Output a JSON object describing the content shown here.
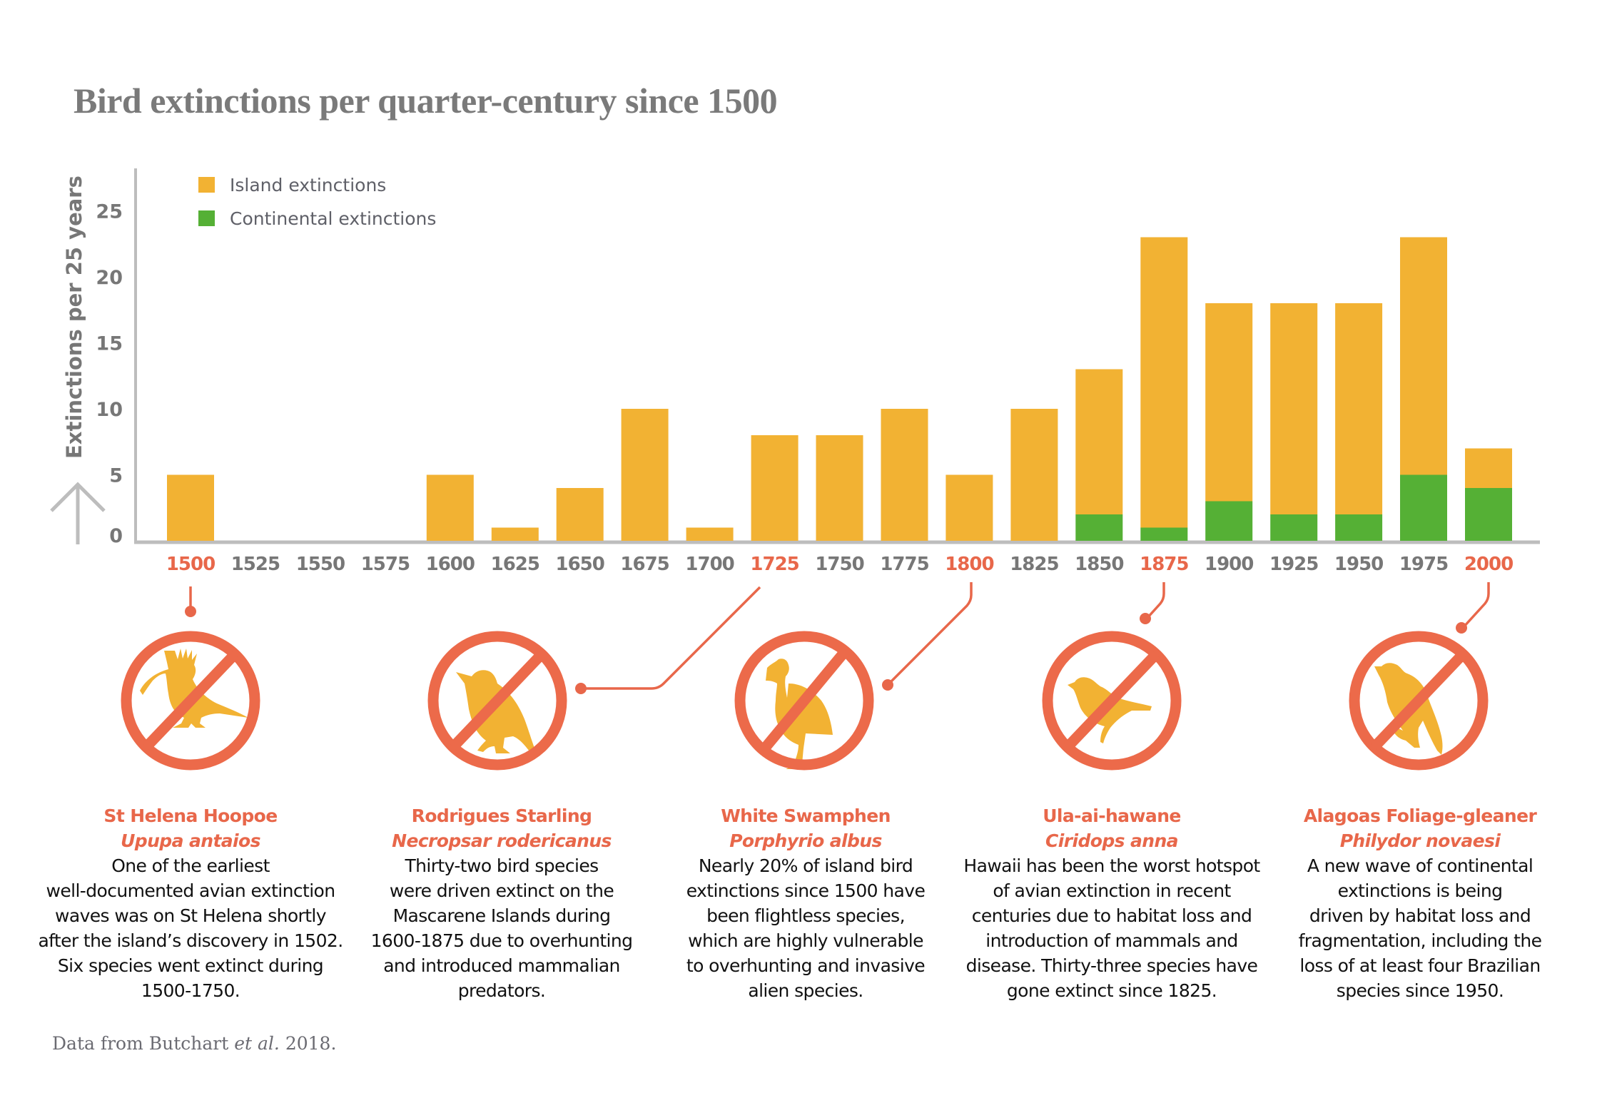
{
  "title": "Bird extinctions per quarter-century since 1500",
  "colors": {
    "island": "#f2b233",
    "continental": "#55b035",
    "accent": "#e8674a",
    "axis": "#bdbdbd",
    "tick_label": "#777777"
  },
  "chart_data": {
    "type": "bar",
    "stacked": true,
    "title": "Bird extinctions per quarter-century since 1500",
    "xlabel": "",
    "ylabel": "Extinctions per 25 years",
    "ylim": [
      0,
      28
    ],
    "yticks": [
      0,
      5,
      10,
      15,
      20,
      25
    ],
    "grid": false,
    "legend_position": "top-left",
    "categories": [
      "1500",
      "1525",
      "1550",
      "1575",
      "1600",
      "1625",
      "1650",
      "1675",
      "1700",
      "1725",
      "1750",
      "1775",
      "1800",
      "1825",
      "1850",
      "1875",
      "1900",
      "1925",
      "1950",
      "1975",
      "2000"
    ],
    "highlighted_categories": [
      "1500",
      "1725",
      "1800",
      "1875",
      "2000"
    ],
    "series": [
      {
        "name": "Continental extinctions",
        "color": "#55b035",
        "values": [
          0,
          0,
          0,
          0,
          0,
          0,
          0,
          0,
          0,
          0,
          0,
          0,
          0,
          0,
          2,
          1,
          3,
          2,
          2,
          5,
          4
        ]
      },
      {
        "name": "Island extinctions",
        "color": "#f2b233",
        "values": [
          5,
          0,
          0,
          0,
          5,
          1,
          4,
          10,
          1,
          8,
          8,
          10,
          5,
          10,
          11,
          22,
          15,
          16,
          16,
          18,
          3
        ]
      }
    ],
    "totals": [
      5,
      0,
      0,
      0,
      5,
      1,
      4,
      10,
      1,
      8,
      8,
      10,
      5,
      10,
      13,
      23,
      18,
      18,
      18,
      23,
      7
    ]
  },
  "legend": [
    {
      "label": "Island extinctions",
      "color": "#f2b233"
    },
    {
      "label": "Continental extinctions",
      "color": "#55b035"
    }
  ],
  "annotations": [
    {
      "year": "1500",
      "icon": "hoopoe-silhouette-icon",
      "common_name": "St Helena Hoopoe",
      "scientific_name": "Upupa antaios",
      "lines": [
        "One of the earliest",
        "well-documented avian extinction",
        "waves was on St Helena shortly",
        "after the island’s discovery in 1502.",
        "Six species went extinct during",
        "1500-1750."
      ]
    },
    {
      "year": "1725",
      "icon": "starling-silhouette-icon",
      "common_name": "Rodrigues Starling",
      "scientific_name": "Necropsar rodericanus",
      "lines": [
        "Thirty-two bird species",
        "were driven extinct on the",
        "Mascarene Islands during",
        "1600-1875 due to overhunting",
        "and introduced mammalian",
        "predators."
      ]
    },
    {
      "year": "1800",
      "icon": "swamphen-silhouette-icon",
      "common_name": "White Swamphen",
      "scientific_name": "Porphyrio albus",
      "lines": [
        "Nearly 20% of island bird",
        "extinctions since 1500 have",
        "been flightless species,",
        "which are highly vulnerable",
        "to overhunting and invasive",
        "alien species."
      ]
    },
    {
      "year": "1875",
      "icon": "ula-ai-hawane-silhouette-icon",
      "common_name": "Ula-ai-hawane",
      "scientific_name": "Ciridops anna",
      "lines": [
        "Hawaii has been the worst hotspot",
        "of avian extinction in recent",
        "centuries due to habitat loss and",
        "introduction of mammals and",
        "disease. Thirty-three species have",
        "gone extinct since 1825."
      ]
    },
    {
      "year": "2000",
      "icon": "foliage-gleaner-silhouette-icon",
      "common_name": "Alagoas Foliage-gleaner",
      "scientific_name": "Philydor novaesi",
      "lines": [
        "A new wave of continental",
        "extinctions is being",
        "driven by habitat loss and",
        "fragmentation, including the",
        "loss of at least four Brazilian",
        "species since 1950."
      ]
    }
  ],
  "footer": {
    "prefix": "Data from Butchart ",
    "italic": "et al.",
    "suffix": " 2018."
  }
}
